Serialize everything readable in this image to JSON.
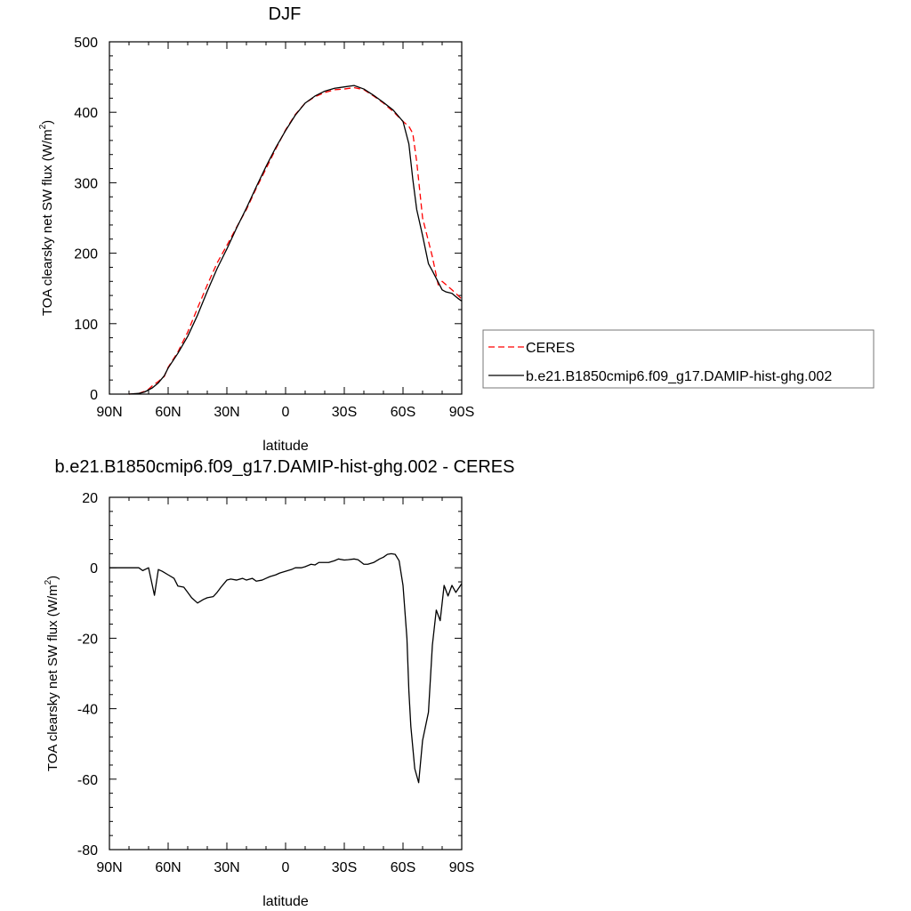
{
  "chart_data": [
    {
      "type": "line",
      "title": "DJF",
      "xlabel": "latitude",
      "ylabel": "TOA clearsky net SW flux (W/m²)",
      "ylabel_main": "TOA clearsky net SW flux (W/m",
      "ylabel_sup": "2",
      "ylabel_end": ")",
      "xlim": [
        -90,
        90
      ],
      "ylim": [
        0,
        500
      ],
      "x_ticks": [
        -90,
        -60,
        -30,
        0,
        30,
        60,
        90
      ],
      "x_tick_labels": [
        "90N",
        "60N",
        "30N",
        "0",
        "30S",
        "60S",
        "90S"
      ],
      "y_ticks": [
        0,
        100,
        200,
        300,
        400,
        500
      ],
      "y_tick_labels": [
        "0",
        "100",
        "200",
        "300",
        "400",
        "500"
      ],
      "legend_position": "right",
      "series": [
        {
          "name": "CERES",
          "color": "#ff0000",
          "dash": "dashed",
          "x": [
            -80,
            -75,
            -72,
            -70,
            -68,
            -65,
            -62,
            -60,
            -55,
            -50,
            -45,
            -40,
            -35,
            -30,
            -25,
            -20,
            -15,
            -10,
            -5,
            0,
            5,
            10,
            15,
            20,
            25,
            30,
            35,
            40,
            45,
            50,
            55,
            60,
            63,
            65,
            67,
            70,
            75,
            78,
            80,
            85,
            90
          ],
          "y": [
            0,
            1,
            4,
            7,
            12,
            18,
            25,
            38,
            60,
            88,
            122,
            155,
            186,
            211,
            237,
            262,
            292,
            320,
            348,
            375,
            397,
            413,
            422,
            428,
            432,
            433,
            435,
            432,
            423,
            413,
            401,
            387,
            380,
            370,
            330,
            250,
            195,
            155,
            160,
            148,
            135
          ]
        },
        {
          "name": "b.e21.B1850cmip6.f09_g17.DAMIP-hist-ghg.002",
          "color": "#000000",
          "dash": "solid",
          "x": [
            -80,
            -75,
            -72,
            -70,
            -68,
            -65,
            -62,
            -60,
            -55,
            -50,
            -45,
            -40,
            -35,
            -30,
            -25,
            -20,
            -15,
            -10,
            -5,
            0,
            5,
            10,
            15,
            20,
            25,
            30,
            35,
            40,
            45,
            50,
            55,
            60,
            63,
            65,
            67,
            70,
            73,
            75,
            80,
            82,
            85,
            88,
            90
          ],
          "y": [
            0,
            1,
            3,
            6,
            9,
            16,
            26,
            37,
            58,
            82,
            112,
            146,
            178,
            206,
            236,
            264,
            294,
            323,
            350,
            374,
            396,
            413,
            423,
            430,
            434,
            436,
            438,
            433,
            424,
            414,
            403,
            387,
            355,
            305,
            262,
            225,
            185,
            175,
            148,
            145,
            143,
            136,
            132
          ]
        }
      ]
    },
    {
      "type": "line",
      "title": "b.e21.B1850cmip6.f09_g17.DAMIP-hist-ghg.002 - CERES",
      "xlabel": "latitude",
      "ylabel": "TOA clearsky net SW flux (W/m²)",
      "ylabel_main": "TOA clearsky net SW flux (W/m",
      "ylabel_sup": "2",
      "ylabel_end": ")",
      "xlim": [
        -90,
        90
      ],
      "ylim": [
        -80,
        20
      ],
      "x_ticks": [
        -90,
        -60,
        -30,
        0,
        30,
        60,
        90
      ],
      "x_tick_labels": [
        "90N",
        "60N",
        "30N",
        "0",
        "30S",
        "60S",
        "90S"
      ],
      "y_ticks": [
        -80,
        -60,
        -40,
        -20,
        0,
        20
      ],
      "y_tick_labels": [
        "-80",
        "-60",
        "-40",
        "-20",
        "0",
        "20"
      ],
      "series": [
        {
          "name": "",
          "color": "#000000",
          "dash": "solid",
          "x": [
            -90,
            -85,
            -80,
            -77,
            -75,
            -73,
            -70,
            -67,
            -65,
            -63,
            -60,
            -57,
            -55,
            -52,
            -50,
            -48,
            -45,
            -42,
            -40,
            -37,
            -35,
            -33,
            -30,
            -28,
            -25,
            -22,
            -20,
            -17,
            -15,
            -12,
            -10,
            -8,
            -5,
            -3,
            0,
            3,
            5,
            8,
            10,
            13,
            15,
            17,
            20,
            22,
            25,
            27,
            30,
            32,
            35,
            37,
            40,
            42,
            45,
            48,
            50,
            52,
            54,
            56,
            58,
            60,
            62,
            63,
            64,
            66,
            68,
            70,
            73,
            75,
            77,
            79,
            81,
            83,
            85,
            87,
            90
          ],
          "y": [
            0,
            0,
            0,
            0,
            0,
            -0.8,
            0,
            -7.8,
            -0.5,
            -1,
            -2,
            -3,
            -5.2,
            -5.5,
            -7,
            -8.5,
            -10,
            -9,
            -8.5,
            -8.2,
            -7,
            -5.5,
            -3.5,
            -3.2,
            -3.5,
            -3,
            -3.5,
            -3,
            -3.8,
            -3.5,
            -3,
            -2.5,
            -2,
            -1.5,
            -1,
            -0.5,
            0,
            0,
            0.3,
            1,
            0.8,
            1.5,
            1.5,
            1.5,
            2,
            2.5,
            2.2,
            2.3,
            2.5,
            2.3,
            1,
            1,
            1.5,
            2.5,
            3,
            3.8,
            4,
            3.8,
            2,
            -5,
            -20,
            -35,
            -45,
            -57,
            -61,
            -49,
            -41,
            -22,
            -12,
            -15,
            -5,
            -8,
            -5,
            -7,
            -4.5
          ]
        }
      ]
    }
  ]
}
